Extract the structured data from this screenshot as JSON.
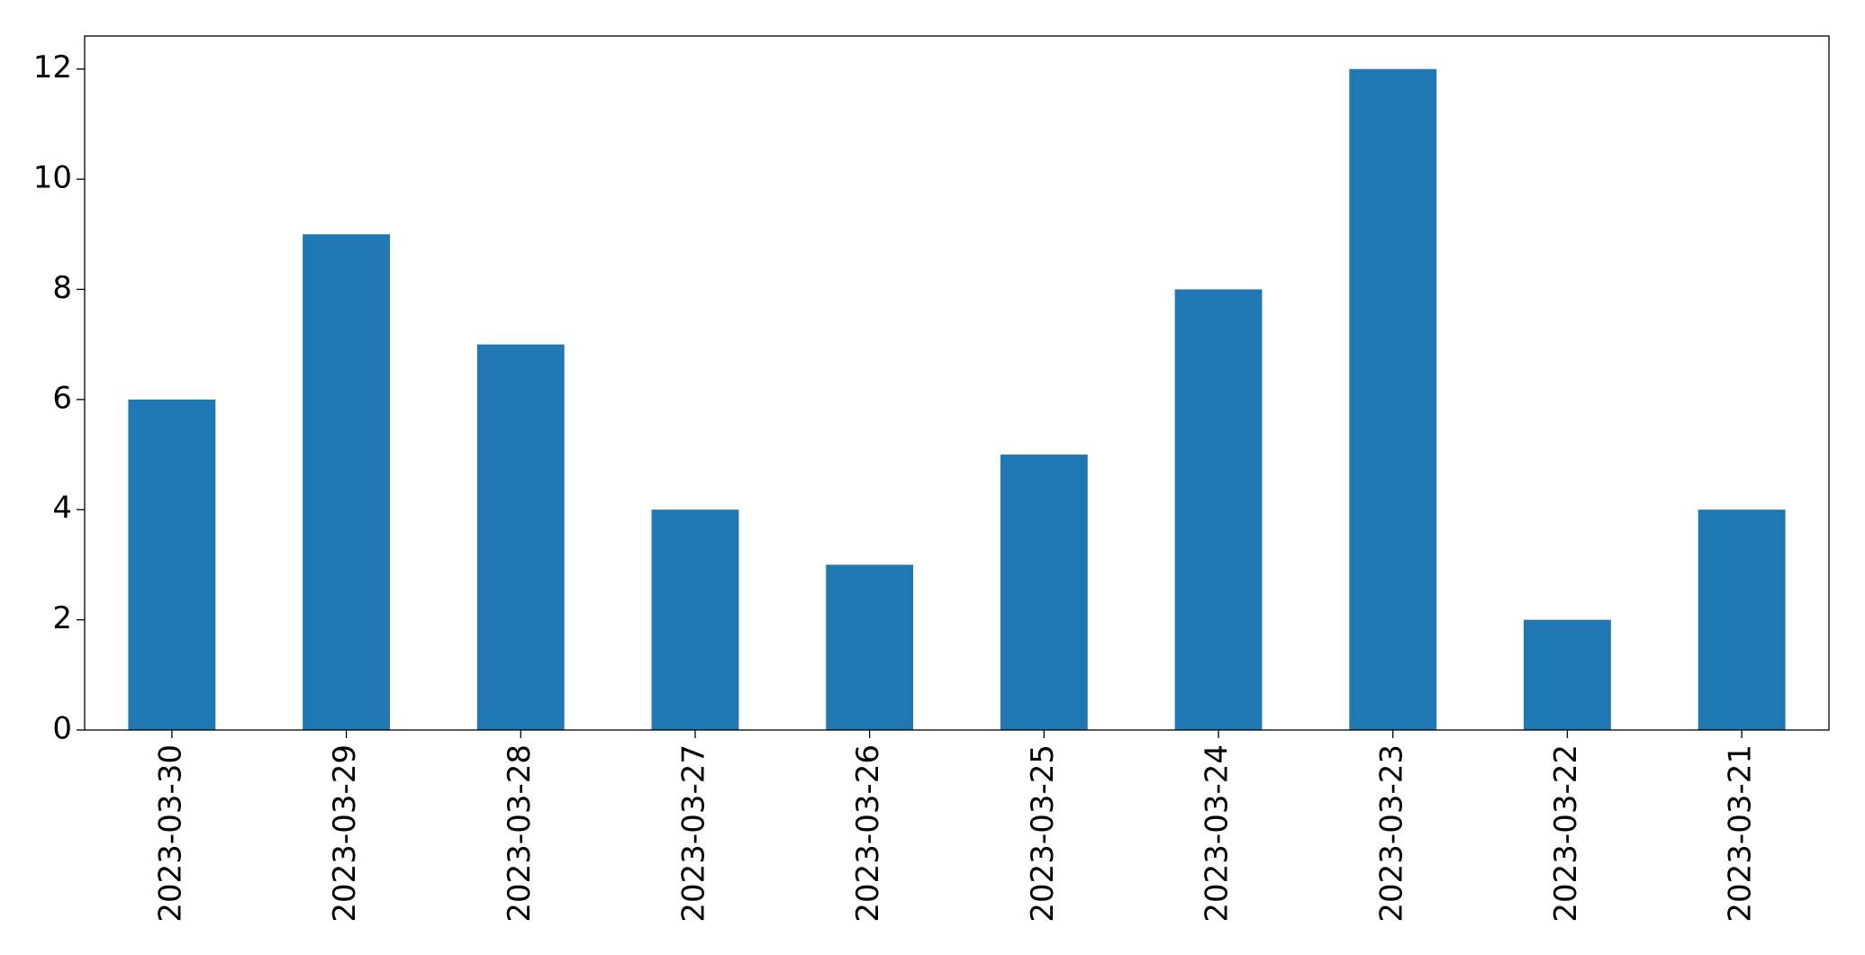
{
  "chart_data": {
    "type": "bar",
    "categories": [
      "2023-03-30",
      "2023-03-29",
      "2023-03-28",
      "2023-03-27",
      "2023-03-26",
      "2023-03-25",
      "2023-03-24",
      "2023-03-23",
      "2023-03-22",
      "2023-03-21"
    ],
    "values": [
      6,
      9,
      7,
      4,
      3,
      5,
      8,
      12,
      2,
      4
    ],
    "color": "#1f77b4",
    "ylim": [
      0,
      12.6
    ],
    "yticks": [
      0,
      2,
      4,
      6,
      8,
      10,
      12
    ],
    "grid": false
  }
}
